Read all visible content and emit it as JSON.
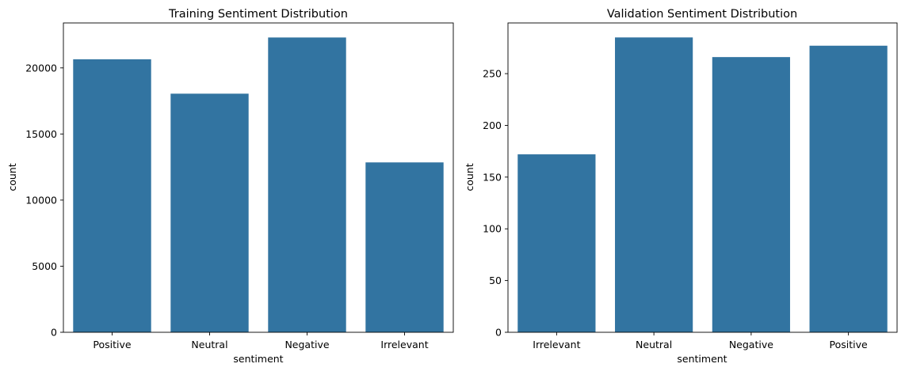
{
  "chart_data": [
    {
      "type": "bar",
      "title": "Training Sentiment Distribution",
      "xlabel": "sentiment",
      "ylabel": "count",
      "categories": [
        "Positive",
        "Neutral",
        "Negative",
        "Irrelevant"
      ],
      "values": [
        20650,
        18050,
        22300,
        12850
      ],
      "ylim": [
        0,
        23400
      ],
      "yticks": [
        0,
        5000,
        10000,
        15000,
        20000
      ],
      "color": "#3274a1",
      "grid": false,
      "legend": false
    },
    {
      "type": "bar",
      "title": "Validation Sentiment Distribution",
      "xlabel": "sentiment",
      "ylabel": "count",
      "categories": [
        "Irrelevant",
        "Neutral",
        "Negative",
        "Positive"
      ],
      "values": [
        172,
        285,
        266,
        277
      ],
      "ylim": [
        0,
        299
      ],
      "yticks": [
        0,
        50,
        100,
        150,
        200,
        250
      ],
      "color": "#3274a1",
      "grid": false,
      "legend": false
    }
  ]
}
